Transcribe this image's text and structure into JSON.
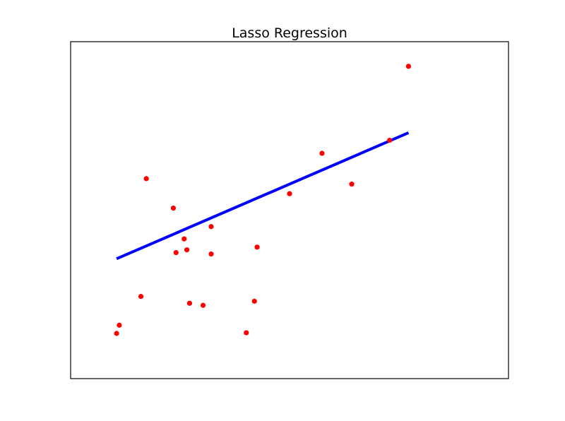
{
  "chart_data": {
    "type": "scatter",
    "title": "Lasso Regression",
    "xlabel": "",
    "ylabel": "",
    "xticks": false,
    "yticks": false,
    "grid": false,
    "xlim": [
      0.4,
      16.6
    ],
    "ylim": [
      -2.2,
      22.4
    ],
    "series": [
      {
        "kind": "scatter",
        "color": "#ff0000",
        "points": [
          {
            "x": 2.1,
            "y": 1.1
          },
          {
            "x": 2.2,
            "y": 1.7
          },
          {
            "x": 3.0,
            "y": 3.8
          },
          {
            "x": 3.2,
            "y": 12.4
          },
          {
            "x": 4.2,
            "y": 10.25
          },
          {
            "x": 4.3,
            "y": 7.0
          },
          {
            "x": 4.6,
            "y": 8.0
          },
          {
            "x": 4.7,
            "y": 7.2
          },
          {
            "x": 4.8,
            "y": 3.3
          },
          {
            "x": 5.3,
            "y": 3.15
          },
          {
            "x": 5.6,
            "y": 6.9
          },
          {
            "x": 5.6,
            "y": 8.9
          },
          {
            "x": 6.9,
            "y": 1.15
          },
          {
            "x": 7.2,
            "y": 3.45
          },
          {
            "x": 7.3,
            "y": 7.4
          },
          {
            "x": 8.5,
            "y": 11.3
          },
          {
            "x": 9.7,
            "y": 14.25
          },
          {
            "x": 10.8,
            "y": 12.0
          },
          {
            "x": 12.2,
            "y": 15.2
          },
          {
            "x": 12.9,
            "y": 20.6
          }
        ]
      },
      {
        "kind": "line",
        "color": "#0000ff",
        "points": [
          {
            "x": 2.1,
            "y": 6.55
          },
          {
            "x": 12.9,
            "y": 15.75
          }
        ]
      }
    ]
  }
}
